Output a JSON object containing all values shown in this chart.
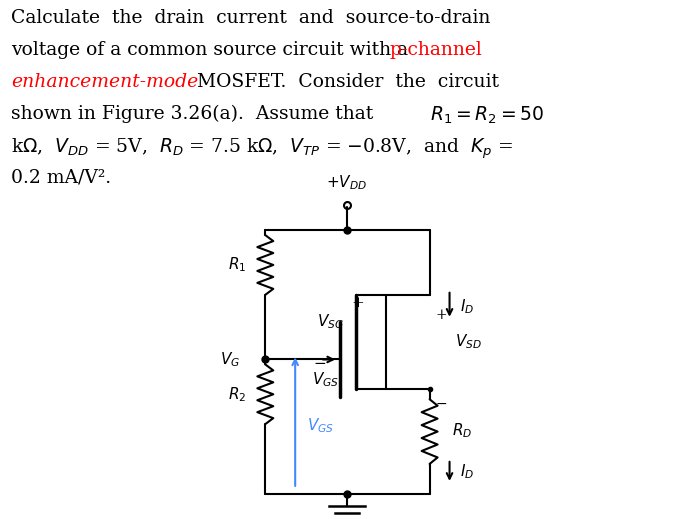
{
  "bg_color": "#ffffff",
  "text_fontsize": 13.5,
  "circuit_fontsize": 11,
  "line1": "Calculate  the  drain  current  and  source-to-drain",
  "line2a": "voltage of a common source circuit with a ",
  "line2b": "p-channel",
  "line3a": "enhancement-mode",
  "line3b": " MOSFET.  Consider  the  circuit",
  "line4a": "shown in Figure 3.26(a).  Assume that ",
  "line4b": "$R_1 = R_2 = 50$",
  "line5": "k$\\Omega$,  $V_{DD}$ = 5V,  $R_D$ = 7.5 k$\\Omega$,  $V_{TP}$ = $-$0.8V,  and  $K_p$ =",
  "line6": "0.2 mA/V²."
}
